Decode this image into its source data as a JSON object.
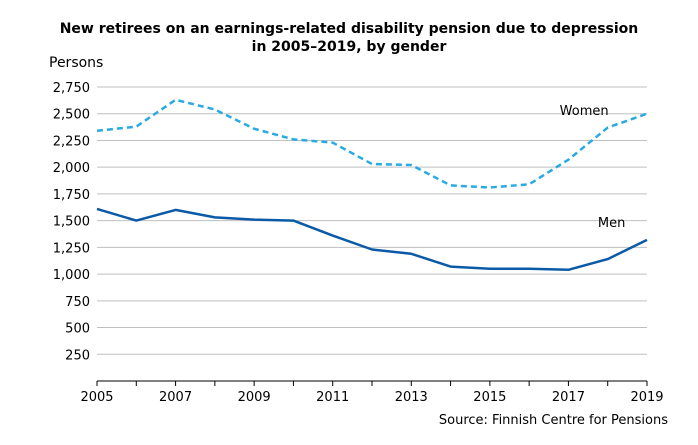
{
  "chart_data": {
    "type": "line",
    "title_lines": [
      "New retirees on an earnings-related disability pension due to depression",
      "in 2005–2019, by gender"
    ],
    "ylabel": "Persons",
    "xlabel": "",
    "x": [
      2005,
      2006,
      2007,
      2008,
      2009,
      2010,
      2011,
      2012,
      2013,
      2014,
      2015,
      2016,
      2017,
      2018,
      2019
    ],
    "x_tick_labels": [
      "2005",
      "2007",
      "2009",
      "2011",
      "2013",
      "2015",
      "2017",
      "2019"
    ],
    "y_tick_labels": [
      "250",
      "500",
      "750",
      "1,000",
      "1,250",
      "1,500",
      "1,750",
      "2,000",
      "2,250",
      "2,500",
      "2,750"
    ],
    "y_ticks": [
      250,
      500,
      750,
      1000,
      1250,
      1500,
      1750,
      2000,
      2250,
      2500,
      2750
    ],
    "ylim": [
      0,
      2750
    ],
    "xlim": [
      2005,
      2019
    ],
    "grid": "horizontal",
    "series": [
      {
        "name": "Women",
        "style": "dashed",
        "color": "#29abe2",
        "values": [
          2340,
          2380,
          2630,
          2540,
          2360,
          2260,
          2230,
          2030,
          2020,
          1830,
          1810,
          1840,
          2070,
          2370,
          2500
        ]
      },
      {
        "name": "Men",
        "style": "solid",
        "color": "#0a5aa8",
        "values": [
          1610,
          1500,
          1600,
          1530,
          1510,
          1500,
          1360,
          1230,
          1190,
          1070,
          1050,
          1050,
          1040,
          1140,
          1320
        ]
      }
    ],
    "source": "Source: Finnish Centre for Pensions"
  }
}
